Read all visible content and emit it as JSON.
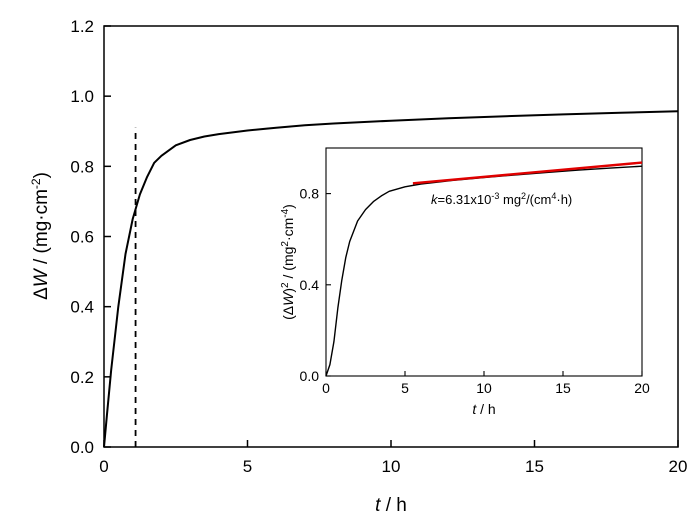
{
  "chart_data": [
    {
      "type": "line",
      "xlim": [
        0,
        20
      ],
      "ylim": [
        0,
        1.2
      ],
      "x_ticks": [
        "0",
        "5",
        "10",
        "15",
        "20"
      ],
      "y_ticks": [
        "0.0",
        "0.2",
        "0.4",
        "0.6",
        "0.8",
        "1.0",
        "1.2"
      ],
      "xlabel": {
        "var": "t",
        "unit": " / h"
      },
      "ylabel": {
        "var": "ΔW",
        "rest": "/ (mg·cm",
        "sup": "-2",
        "close": ")"
      },
      "reference_line": {
        "x": 1.1,
        "y_range": [
          0,
          0.91
        ],
        "style": "dashed"
      },
      "series": [
        {
          "x": [
            0,
            0.1,
            0.25,
            0.5,
            0.75,
            1.0,
            1.25,
            1.5,
            1.75,
            2.0,
            2.5,
            3.0,
            3.5,
            4.0,
            5.0,
            6.0,
            7.0,
            8.0,
            10.0,
            12.0,
            14.0,
            16.0,
            18.0,
            20.0
          ],
          "y": [
            0,
            0.09,
            0.22,
            0.4,
            0.55,
            0.65,
            0.72,
            0.77,
            0.81,
            0.83,
            0.86,
            0.875,
            0.885,
            0.892,
            0.902,
            0.91,
            0.917,
            0.922,
            0.93,
            0.937,
            0.943,
            0.948,
            0.953,
            0.957
          ]
        }
      ]
    },
    {
      "type": "line",
      "xlim": [
        0,
        20
      ],
      "ylim": [
        0,
        1.0
      ],
      "x_ticks": [
        "0",
        "5",
        "10",
        "15",
        "20"
      ],
      "y_ticks": [
        "0.0",
        "0.4",
        "0.8"
      ],
      "xlabel": {
        "var": "t",
        "unit": " / h"
      },
      "ylabel": {
        "pre": "(Δ",
        "var": "W",
        "close": ")",
        "sup1": "2",
        "rest": " / (mg",
        "sup2": "2",
        "mid": "·cm",
        "sup3": "-4",
        "end": ")"
      },
      "annotation": {
        "var": "k",
        "text1": "=6.31x10",
        "sup1": "-3",
        "text2": " mg",
        "sup2": "2",
        "text3": "/(cm",
        "sup3": "4",
        "text4": "·h)"
      },
      "series": [
        {
          "x": [
            0,
            0.25,
            0.5,
            0.75,
            1.0,
            1.25,
            1.5,
            2.0,
            2.5,
            3.0,
            3.5,
            4.0,
            5.0,
            6.0,
            8.0,
            10.0,
            12.0,
            14.0,
            16.0,
            18.0,
            20.0
          ],
          "y": [
            0,
            0.05,
            0.15,
            0.3,
            0.42,
            0.52,
            0.59,
            0.68,
            0.73,
            0.765,
            0.79,
            0.81,
            0.83,
            0.842,
            0.858,
            0.87,
            0.882,
            0.893,
            0.903,
            0.912,
            0.92
          ]
        }
      ],
      "fit": {
        "x": [
          5.5,
          20.0
        ],
        "y": [
          0.845,
          0.936
        ],
        "color": "#e00000"
      }
    }
  ]
}
